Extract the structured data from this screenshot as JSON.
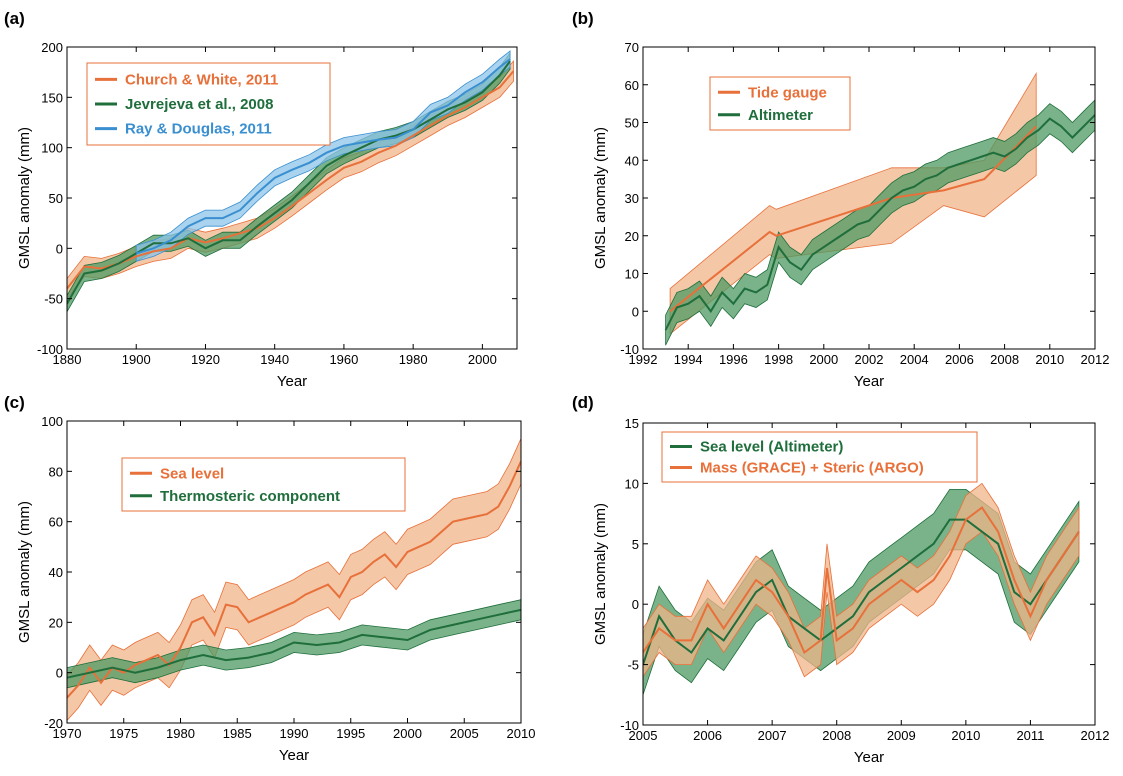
{
  "colors": {
    "orange": "#e8703a",
    "orange_fill": "#f0b48a",
    "green": "#1f6e3c",
    "green_fill": "#4e9a62",
    "blue": "#3a8fd0",
    "blue_fill": "#8cc4e8"
  },
  "chart_data": [
    {
      "panel_label": "(a)",
      "type": "line",
      "xlabel": "Year",
      "ylabel": "GMSL anomaly (mm)",
      "xlim": [
        1880,
        2010
      ],
      "ylim": [
        -100,
        200
      ],
      "xticks": [
        1880,
        1900,
        1920,
        1940,
        1960,
        1980,
        2000
      ],
      "yticks": [
        -100,
        -50,
        0,
        50,
        100,
        150,
        200
      ],
      "grid": false,
      "legend_position": "top-left",
      "series": [
        {
          "name": "Church & White, 2011",
          "color": "orange",
          "band": 10,
          "x": [
            1880,
            1885,
            1890,
            1895,
            1900,
            1905,
            1910,
            1915,
            1920,
            1925,
            1930,
            1935,
            1940,
            1945,
            1950,
            1955,
            1960,
            1965,
            1970,
            1975,
            1980,
            1985,
            1990,
            1995,
            2000,
            2005,
            2009
          ],
          "y": [
            -40,
            -18,
            -20,
            -15,
            -8,
            -3,
            0,
            10,
            6,
            10,
            15,
            20,
            30,
            42,
            55,
            68,
            80,
            86,
            95,
            102,
            112,
            122,
            132,
            140,
            150,
            160,
            176
          ]
        },
        {
          "name": "Jevrejeva et al., 2008",
          "color": "green",
          "band": 8,
          "x": [
            1880,
            1885,
            1890,
            1895,
            1900,
            1905,
            1910,
            1915,
            1920,
            1925,
            1930,
            1935,
            1940,
            1945,
            1950,
            1955,
            1960,
            1965,
            1970,
            1975,
            1980,
            1985,
            1990,
            1995,
            2000,
            2005,
            2008
          ],
          "y": [
            -55,
            -25,
            -22,
            -15,
            -5,
            5,
            5,
            10,
            0,
            8,
            8,
            22,
            35,
            48,
            65,
            82,
            92,
            100,
            108,
            112,
            118,
            128,
            138,
            145,
            155,
            172,
            186
          ]
        },
        {
          "name": "Ray & Douglas, 2011",
          "color": "blue",
          "band": 8,
          "x": [
            1900,
            1905,
            1910,
            1915,
            1920,
            1925,
            1930,
            1935,
            1940,
            1945,
            1950,
            1955,
            1960,
            1965,
            1970,
            1975,
            1980,
            1985,
            1990,
            1995,
            2000,
            2005,
            2008
          ],
          "y": [
            -5,
            0,
            8,
            22,
            30,
            30,
            38,
            55,
            70,
            78,
            85,
            95,
            102,
            105,
            108,
            110,
            118,
            135,
            142,
            155,
            165,
            180,
            188
          ]
        }
      ]
    },
    {
      "panel_label": "(b)",
      "type": "line",
      "xlabel": "Year",
      "ylabel": "GMSL anomaly (mm)",
      "xlim": [
        1992,
        2012
      ],
      "ylim": [
        -10,
        70
      ],
      "xticks": [
        1992,
        1994,
        1996,
        1998,
        2000,
        2002,
        2004,
        2006,
        2008,
        2010,
        2012
      ],
      "yticks": [
        -10,
        0,
        10,
        20,
        30,
        40,
        50,
        60,
        70
      ],
      "grid": false,
      "legend_position": "top-left",
      "series": [
        {
          "name": "Tide gauge",
          "color": "orange",
          "x": [
            1993.2,
            1997.6,
            1997.9,
            2003.0,
            2005.3,
            2007.1,
            2009.4
          ],
          "y": [
            0,
            21,
            20,
            30,
            32,
            35,
            49
          ],
          "lower": [
            -6,
            15,
            14,
            18,
            28,
            25,
            36
          ],
          "upper": [
            6,
            28,
            27,
            38,
            38,
            40,
            63
          ]
        },
        {
          "name": "Altimeter",
          "color": "green",
          "band": 4,
          "x": [
            1993.0,
            1993.5,
            1994,
            1994.5,
            1995,
            1995.5,
            1996,
            1996.5,
            1997,
            1997.5,
            1998,
            1998.5,
            1999,
            1999.5,
            2000,
            2000.5,
            2001,
            2001.5,
            2002,
            2002.5,
            2003,
            2003.5,
            2004,
            2004.5,
            2005,
            2005.5,
            2006,
            2006.5,
            2007,
            2007.5,
            2008,
            2008.5,
            2009,
            2009.5,
            2010,
            2010.5,
            2011,
            2011.5,
            2012
          ],
          "y": [
            -5,
            1,
            2,
            4,
            0,
            5,
            2,
            6,
            5,
            7,
            17,
            13,
            11,
            15,
            17,
            19,
            21,
            23,
            24,
            27,
            30,
            32,
            33,
            35,
            36,
            38,
            39,
            40,
            41,
            42,
            41,
            43,
            46,
            48,
            51,
            49,
            46,
            49,
            52
          ]
        }
      ]
    },
    {
      "panel_label": "(c)",
      "type": "line",
      "xlabel": "Year",
      "ylabel": "GMSL anomaly (mm)",
      "xlim": [
        1970,
        2010
      ],
      "ylim": [
        -20,
        100
      ],
      "xticks": [
        1970,
        1975,
        1980,
        1985,
        1990,
        1995,
        2000,
        2005,
        2010
      ],
      "yticks": [
        -20,
        0,
        20,
        40,
        60,
        80,
        100
      ],
      "grid": false,
      "legend_position": "top-left",
      "series": [
        {
          "name": "Sea level",
          "color": "orange",
          "band": 9,
          "x": [
            1970,
            1971,
            1972,
            1973,
            1974,
            1975,
            1976,
            1977,
            1978,
            1979,
            1980,
            1981,
            1982,
            1983,
            1984,
            1985,
            1986,
            1987,
            1988,
            1989,
            1990,
            1991,
            1992,
            1993,
            1994,
            1995,
            1996,
            1997,
            1998,
            1999,
            2000,
            2001,
            2002,
            2003,
            2004,
            2005,
            2006,
            2007,
            2008,
            2009,
            2010
          ],
          "y": [
            -10,
            -5,
            2,
            -4,
            2,
            0,
            3,
            5,
            7,
            3,
            10,
            20,
            22,
            15,
            27,
            26,
            20,
            22,
            24,
            26,
            28,
            31,
            33,
            35,
            30,
            38,
            40,
            44,
            47,
            42,
            48,
            50,
            52,
            56,
            60,
            61,
            62,
            63,
            66,
            74,
            84
          ]
        },
        {
          "name": "Thermosteric component",
          "color": "green",
          "band": 4,
          "x": [
            1970,
            1972,
            1974,
            1976,
            1978,
            1980,
            1982,
            1984,
            1986,
            1988,
            1990,
            1992,
            1994,
            1996,
            1998,
            2000,
            2002,
            2004,
            2006,
            2008,
            2010
          ],
          "y": [
            -2,
            0,
            2,
            0,
            2,
            5,
            7,
            5,
            6,
            8,
            12,
            11,
            12,
            15,
            14,
            13,
            17,
            19,
            21,
            23,
            25
          ]
        }
      ]
    },
    {
      "panel_label": "(d)",
      "type": "line",
      "xlabel": "Year",
      "ylabel": "GMSL anomaly (mm)",
      "xlim": [
        2005,
        2012
      ],
      "ylim": [
        -10,
        15
      ],
      "xticks": [
        2005,
        2006,
        2007,
        2008,
        2009,
        2010,
        2011,
        2012
      ],
      "yticks": [
        -10,
        -5,
        0,
        5,
        10,
        15
      ],
      "grid": false,
      "legend_position": "top-left",
      "series": [
        {
          "name": "Sea level (Altimeter)",
          "color": "green",
          "band": 2.5,
          "x": [
            2005.0,
            2005.25,
            2005.5,
            2005.75,
            2006.0,
            2006.25,
            2006.5,
            2006.75,
            2007.0,
            2007.25,
            2007.5,
            2007.75,
            2008.0,
            2008.25,
            2008.5,
            2008.75,
            2009.0,
            2009.25,
            2009.5,
            2009.75,
            2010.0,
            2010.25,
            2010.5,
            2010.75,
            2011.0,
            2011.25,
            2011.5,
            2011.75
          ],
          "y": [
            -5,
            -1,
            -3,
            -4,
            -2,
            -3,
            -1,
            1,
            2,
            -1,
            -2,
            -3,
            -2,
            -1,
            1,
            2,
            3,
            4,
            5,
            7,
            7,
            6,
            5,
            1,
            0,
            2,
            4,
            6
          ]
        },
        {
          "name": "Mass (GRACE) + Steric (ARGO)",
          "color": "orange",
          "band": 2,
          "x": [
            2005.0,
            2005.25,
            2005.5,
            2005.75,
            2006.0,
            2006.25,
            2006.5,
            2006.75,
            2007.0,
            2007.25,
            2007.5,
            2007.75,
            2007.85,
            2008.0,
            2008.25,
            2008.5,
            2008.75,
            2009.0,
            2009.25,
            2009.5,
            2009.75,
            2010.0,
            2010.25,
            2010.5,
            2010.75,
            2011.0,
            2011.25,
            2011.5,
            2011.75
          ],
          "y": [
            -4,
            -2,
            -3,
            -3,
            0,
            -2,
            0,
            2,
            1,
            -1,
            -4,
            -3,
            3,
            -3,
            -2,
            0,
            1,
            2,
            1,
            2,
            4,
            7,
            8,
            6,
            2,
            -1,
            2,
            4,
            6
          ]
        }
      ]
    }
  ]
}
